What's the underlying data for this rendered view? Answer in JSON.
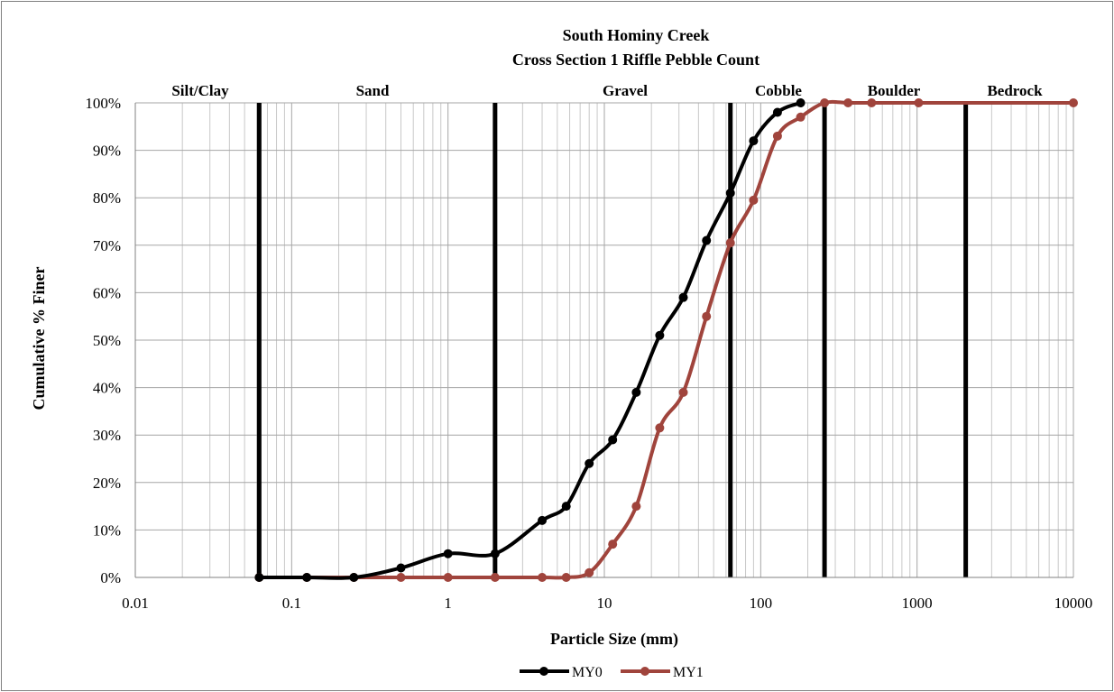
{
  "chart_data": {
    "type": "line",
    "title": "South Hominy Creek",
    "subtitle": "Cross Section 1 Riffle Pebble Count",
    "xlabel": "Particle Size (mm)",
    "ylabel": "Cumulative % Finer",
    "x_scale": "log",
    "xlim": [
      0.01,
      10000
    ],
    "ylim": [
      0,
      100
    ],
    "x_ticks": [
      "0.01",
      "0.1",
      "1",
      "10",
      "100",
      "1000",
      "10000"
    ],
    "y_ticks": [
      "0%",
      "10%",
      "20%",
      "30%",
      "40%",
      "50%",
      "60%",
      "70%",
      "80%",
      "90%",
      "100%"
    ],
    "grid": true,
    "legend_position": "bottom",
    "zones": [
      {
        "label": "Silt/Clay",
        "from": 0.01,
        "to": 0.062
      },
      {
        "label": "Sand",
        "from": 0.062,
        "to": 2
      },
      {
        "label": "Gravel",
        "from": 2,
        "to": 64
      },
      {
        "label": "Cobble",
        "from": 64,
        "to": 256
      },
      {
        "label": "Boulder",
        "from": 256,
        "to": 2048
      },
      {
        "label": "Bedrock",
        "from": 2048,
        "to": 10000
      }
    ],
    "zone_boundaries": [
      0.062,
      2,
      64,
      256,
      2048
    ],
    "series": [
      {
        "name": "MY0",
        "color": "#000000",
        "x": [
          0.062,
          0.125,
          0.25,
          0.5,
          1,
          2,
          4,
          5.7,
          8,
          11.3,
          16,
          22.6,
          32,
          45,
          64,
          90,
          128,
          180
        ],
        "y": [
          0,
          0,
          0,
          2,
          5,
          5,
          12,
          15,
          24,
          29,
          39,
          51,
          59,
          71,
          81,
          92,
          98,
          100
        ]
      },
      {
        "name": "MY1",
        "color": "#a0443c",
        "x": [
          0.062,
          0.125,
          0.25,
          0.5,
          1,
          2,
          4,
          5.7,
          8,
          11.3,
          16,
          22.6,
          32,
          45,
          64,
          90,
          128,
          180,
          256,
          362,
          512,
          1024,
          10000
        ],
        "y": [
          0,
          0,
          0,
          0,
          0,
          0,
          0,
          0,
          1,
          7,
          15,
          31.5,
          39,
          55,
          70.5,
          79.5,
          93,
          97,
          100,
          100,
          100,
          100,
          100
        ]
      }
    ]
  }
}
